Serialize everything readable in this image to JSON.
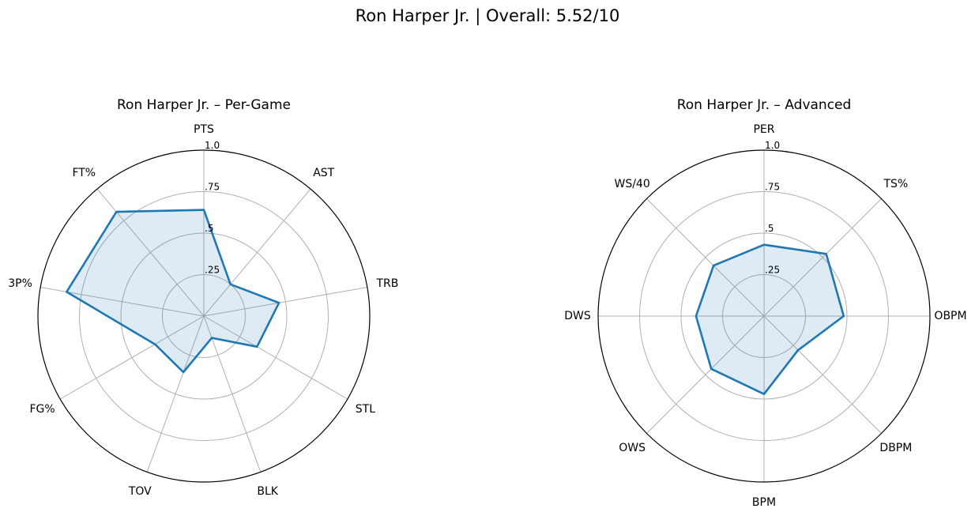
{
  "suptitle": "Ron Harper Jr. | Overall: 5.52/10",
  "colors": {
    "line": "#1f77b4",
    "fill": "#1f77b4",
    "grid": "#b0b0b0",
    "frame": "#000000"
  },
  "chart_data": [
    {
      "type": "radar",
      "title": "Ron Harper Jr. – Per-Game",
      "categories": [
        "PTS",
        "AST",
        "TRB",
        "STL",
        "BLK",
        "TOV",
        "FG%",
        "3P%",
        "FT%"
      ],
      "values": [
        0.64,
        0.25,
        0.46,
        0.37,
        0.14,
        0.36,
        0.34,
        0.84,
        0.82
      ],
      "rlim": [
        0,
        1
      ],
      "rticks": [
        0.25,
        0.5,
        0.75,
        1.0
      ],
      "rtick_labels": [
        ".25",
        ".5",
        ".75",
        "1.0"
      ],
      "grid": true
    },
    {
      "type": "radar",
      "title": "Ron Harper Jr. – Advanced",
      "categories": [
        "PER",
        "TS%",
        "OBPM",
        "DBPM",
        "BPM",
        "OWS",
        "DWS",
        "WS/40"
      ],
      "values": [
        0.43,
        0.53,
        0.48,
        0.29,
        0.47,
        0.45,
        0.41,
        0.43
      ],
      "rlim": [
        0,
        1
      ],
      "rticks": [
        0.25,
        0.5,
        0.75,
        1.0
      ],
      "rtick_labels": [
        ".25",
        ".5",
        ".75",
        "1.0"
      ],
      "grid": true
    }
  ]
}
